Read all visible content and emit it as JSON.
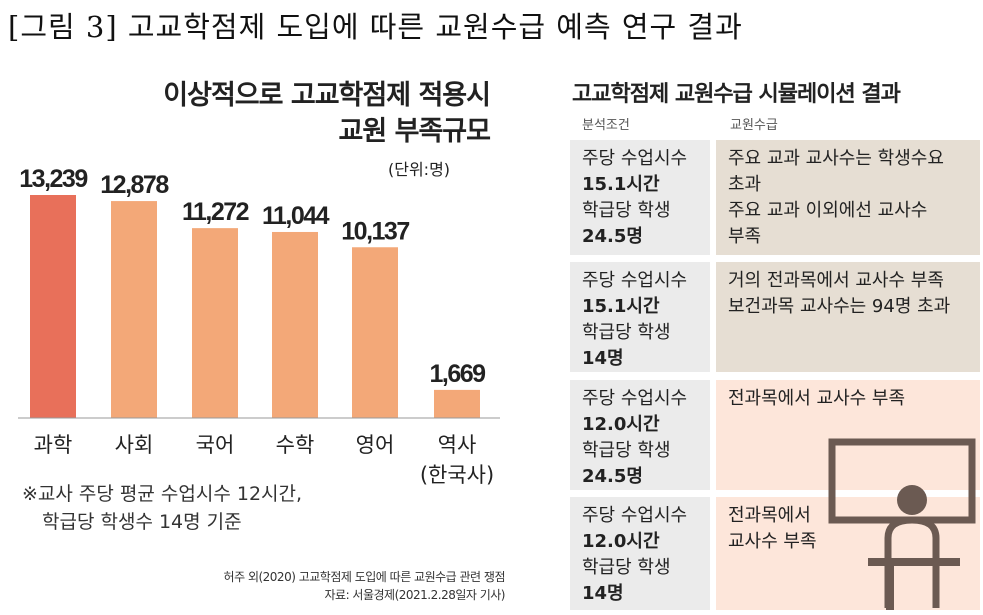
{
  "figure_title": "[그림 3] 고교학점제 도입에 따른 교원수급 예측 연구 결과",
  "chart_data": {
    "type": "bar",
    "title": "이상적으로 고교학점제 적용시 교원 부족규모",
    "title_lines": [
      "이상적으로 고교학점제 적용시",
      "교원 부족규모"
    ],
    "unit": "(단위:명)",
    "categories": [
      "과학",
      "사회",
      "국어",
      "수학",
      "영어",
      "역사"
    ],
    "category_sublabels": [
      "",
      "",
      "",
      "",
      "",
      "(한국사)"
    ],
    "values": [
      13239,
      12878,
      11272,
      11044,
      10137,
      1669
    ],
    "value_labels": [
      "13,239",
      "12,878",
      "11,272",
      "11,044",
      "10,137",
      "1,669"
    ],
    "colors": [
      "#e8705a",
      "#f3a878",
      "#f3a878",
      "#f3a878",
      "#f3a878",
      "#f3a878"
    ],
    "ylim": [
      0,
      13239
    ],
    "grid": false
  },
  "note_lines": [
    "※교사 주당 평균 수업시수 12시간,",
    "학급당 학생수 14명 기준"
  ],
  "source_lines": [
    "허주 외(2020) 고교학점제 도입에 따른 교원수급 관련 쟁점",
    "자료: 서울경제(2021.2.28일자 기사)"
  ],
  "table": {
    "title": "고교학점제 교원수급 시뮬레이션 결과",
    "headers": [
      "분석조건",
      "교원수급"
    ],
    "rows": [
      {
        "cond": [
          "주당 수업시수",
          "15.1시간",
          "학급당 학생",
          "24.5명"
        ],
        "result": [
          "주요 교과 교사수는 학생수요",
          "초과",
          "주요 교과 이외에선 교사수",
          "부족"
        ],
        "color": "#e6ded3"
      },
      {
        "cond": [
          "주당 수업시수",
          "15.1시간",
          "학급당 학생",
          "14명"
        ],
        "result": [
          "거의 전과목에서 교사수 부족",
          "보건과목 교사수는 94명 초과"
        ],
        "color": "#e6ded3"
      },
      {
        "cond": [
          "주당 수업시수",
          "12.0시간",
          "학급당 학생",
          "24.5명"
        ],
        "result": [
          "전과목에서 교사수 부족"
        ],
        "color": "#fde6da"
      },
      {
        "cond": [
          "주당 수업시수",
          "12.0시간",
          "학급당 학생",
          "14명"
        ],
        "result": [
          "전과목에서",
          "교사수 부족"
        ],
        "color": "#fde6da"
      }
    ],
    "cond_color": "#ebebeb",
    "icon": "teacher-at-board-icon"
  }
}
